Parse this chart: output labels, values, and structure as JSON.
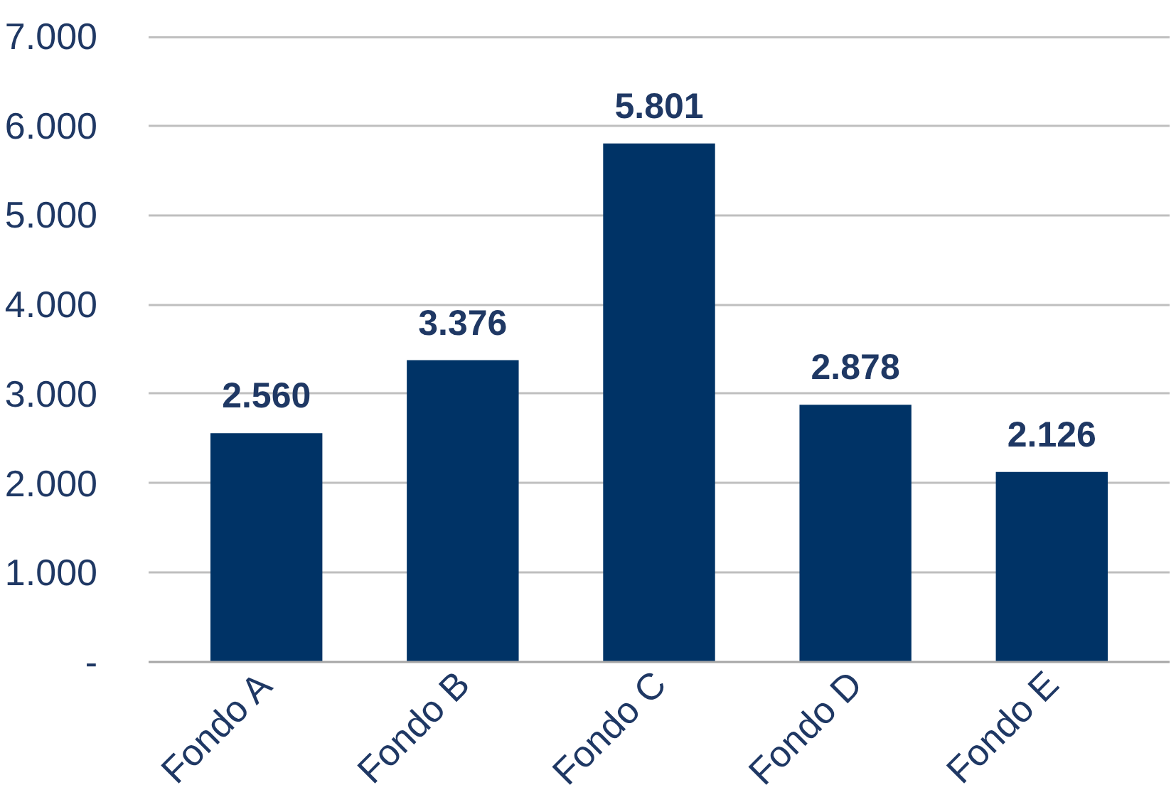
{
  "chart_data": {
    "type": "bar",
    "categories": [
      "Fondo A",
      "Fondo B",
      "Fondo C",
      "Fondo D",
      "Fondo E"
    ],
    "values": [
      2560,
      3376,
      5801,
      2878,
      2126
    ],
    "value_labels": [
      "2.560",
      "3.376",
      "5.801",
      "2.878",
      "2.126"
    ],
    "color": "#003366",
    "ylim": [
      0,
      7000
    ],
    "yticks": [
      {
        "value": 0,
        "label": "-"
      },
      {
        "value": 1000,
        "label": "1.000"
      },
      {
        "value": 2000,
        "label": "2.000"
      },
      {
        "value": 3000,
        "label": "3.000"
      },
      {
        "value": 4000,
        "label": "4.000"
      },
      {
        "value": 5000,
        "label": "5.000"
      },
      {
        "value": 6000,
        "label": "6.000"
      },
      {
        "value": 7000,
        "label": "7.000"
      }
    ],
    "grid": "y"
  }
}
